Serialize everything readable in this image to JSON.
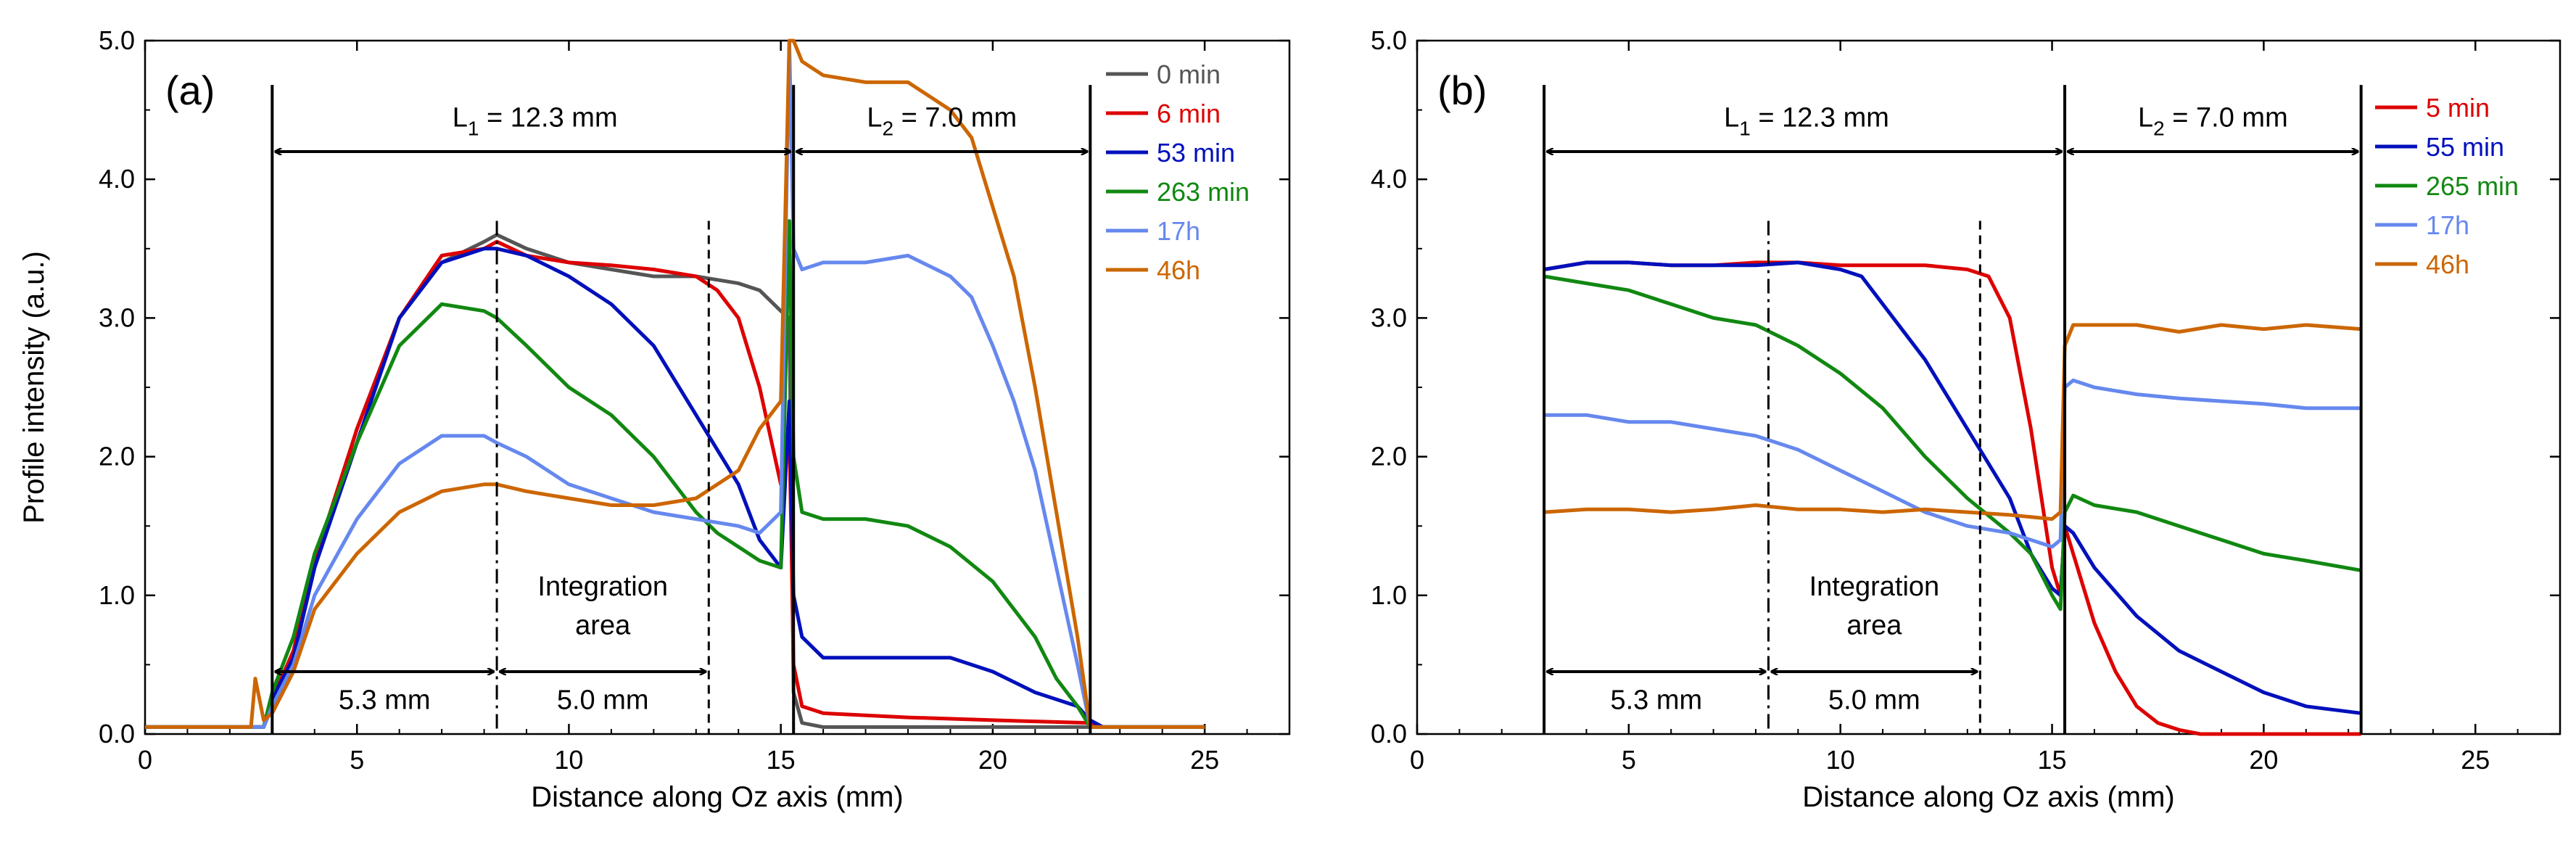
{
  "chart_data": [
    {
      "type": "line",
      "panel_label": "(a)",
      "xlabel": "Distance along Oz axis (mm)",
      "ylabel": "Profile intensity  (a.u.)",
      "xlim": [
        0,
        27
      ],
      "ylim": [
        0,
        5.0
      ],
      "xticks": [
        0,
        5,
        10,
        15,
        20,
        25
      ],
      "yticks": [
        "0.0",
        "1.0",
        "2.0",
        "3.0",
        "4.0",
        "5.0"
      ],
      "legend_position": "top-right",
      "series": [
        {
          "name": "0 min",
          "color": "#555555",
          "x": [
            0,
            2.8,
            3.0,
            3.5,
            4.0,
            5.0,
            6.0,
            7.0,
            8.0,
            8.3,
            9.0,
            10.0,
            11.0,
            12.0,
            13.0,
            14.0,
            14.5,
            15.0,
            15.2,
            15.3,
            15.5,
            16.0,
            18.0,
            20.0,
            22.3,
            22.6,
            25.0
          ],
          "y": [
            0.05,
            0.05,
            0.2,
            0.55,
            1.2,
            2.2,
            3.0,
            3.4,
            3.55,
            3.6,
            3.5,
            3.4,
            3.35,
            3.3,
            3.3,
            3.25,
            3.2,
            3.05,
            3.0,
            0.3,
            0.08,
            0.05,
            0.05,
            0.05,
            0.05,
            0.05,
            0.05
          ]
        },
        {
          "name": "6 min",
          "color": "#dd0000",
          "x": [
            0,
            2.8,
            3.0,
            3.5,
            4.0,
            5.0,
            6.0,
            7.0,
            8.0,
            8.3,
            9.0,
            10.0,
            11.0,
            12.0,
            13.0,
            13.5,
            14.0,
            14.5,
            15.0,
            15.2,
            15.3,
            15.5,
            16.0,
            18.0,
            20.0,
            22.3,
            22.6,
            25.0
          ],
          "y": [
            0.05,
            0.05,
            0.25,
            0.6,
            1.25,
            2.2,
            3.0,
            3.45,
            3.5,
            3.55,
            3.45,
            3.4,
            3.38,
            3.35,
            3.3,
            3.2,
            3.0,
            2.5,
            1.8,
            2.2,
            0.5,
            0.2,
            0.15,
            0.12,
            0.1,
            0.08,
            0.05,
            0.05
          ]
        },
        {
          "name": "53 min",
          "color": "#0010bb",
          "x": [
            0,
            2.8,
            3.0,
            3.5,
            4.0,
            5.0,
            6.0,
            7.0,
            8.0,
            8.3,
            9.0,
            10.0,
            11.0,
            12.0,
            13.0,
            14.0,
            14.5,
            15.0,
            15.2,
            15.3,
            15.5,
            16.0,
            17.0,
            18.0,
            19.0,
            20.0,
            21.0,
            22.0,
            22.3,
            22.6,
            25.0
          ],
          "y": [
            0.05,
            0.05,
            0.25,
            0.55,
            1.2,
            2.1,
            3.0,
            3.4,
            3.5,
            3.5,
            3.45,
            3.3,
            3.1,
            2.8,
            2.3,
            1.8,
            1.4,
            1.2,
            2.4,
            1.0,
            0.7,
            0.55,
            0.55,
            0.55,
            0.55,
            0.45,
            0.3,
            0.2,
            0.1,
            0.05,
            0.05
          ]
        },
        {
          "name": "263 min",
          "color": "#118811",
          "x": [
            0,
            2.8,
            3.0,
            3.5,
            4.0,
            5.0,
            6.0,
            7.0,
            8.0,
            8.3,
            9.0,
            10.0,
            11.0,
            12.0,
            13.0,
            13.5,
            14.0,
            14.5,
            15.0,
            15.2,
            15.3,
            15.5,
            16.0,
            17.0,
            18.0,
            19.0,
            20.0,
            21.0,
            21.5,
            22.0,
            22.3,
            22.6,
            25.0
          ],
          "y": [
            0.05,
            0.05,
            0.3,
            0.7,
            1.3,
            2.1,
            2.8,
            3.1,
            3.05,
            3.0,
            2.8,
            2.5,
            2.3,
            2.0,
            1.6,
            1.45,
            1.35,
            1.25,
            1.2,
            3.7,
            2.0,
            1.6,
            1.55,
            1.55,
            1.5,
            1.35,
            1.1,
            0.7,
            0.4,
            0.2,
            0.05,
            0.05,
            0.05
          ]
        },
        {
          "name": "17h",
          "color": "#6688ee",
          "x": [
            0,
            2.8,
            3.0,
            3.5,
            4.0,
            5.0,
            6.0,
            7.0,
            8.0,
            8.3,
            9.0,
            10.0,
            11.0,
            12.0,
            13.0,
            14.0,
            14.5,
            15.0,
            15.2,
            15.3,
            15.5,
            16.0,
            17.0,
            18.0,
            19.0,
            19.5,
            20.0,
            20.5,
            21.0,
            21.5,
            22.0,
            22.3,
            22.6,
            25.0
          ],
          "y": [
            0.05,
            0.05,
            0.2,
            0.5,
            1.0,
            1.55,
            1.95,
            2.15,
            2.15,
            2.1,
            2.0,
            1.8,
            1.7,
            1.6,
            1.55,
            1.5,
            1.45,
            1.6,
            5.0,
            3.5,
            3.35,
            3.4,
            3.4,
            3.45,
            3.3,
            3.15,
            2.8,
            2.4,
            1.9,
            1.2,
            0.5,
            0.05,
            0.05,
            0.05
          ]
        },
        {
          "name": "46h",
          "color": "#cc6600",
          "x": [
            0,
            2.5,
            2.6,
            2.8,
            3.0,
            3.5,
            4.0,
            5.0,
            6.0,
            7.0,
            8.0,
            8.3,
            9.0,
            10.0,
            11.0,
            12.0,
            13.0,
            14.0,
            14.5,
            15.0,
            15.2,
            15.3,
            15.5,
            16.0,
            17.0,
            18.0,
            19.0,
            19.5,
            20.0,
            20.5,
            21.0,
            21.5,
            22.0,
            22.3,
            22.6,
            25.0
          ],
          "y": [
            0.05,
            0.05,
            0.4,
            0.1,
            0.15,
            0.45,
            0.9,
            1.3,
            1.6,
            1.75,
            1.8,
            1.8,
            1.75,
            1.7,
            1.65,
            1.65,
            1.7,
            1.9,
            2.2,
            2.4,
            5.0,
            5.0,
            4.85,
            4.75,
            4.7,
            4.7,
            4.5,
            4.3,
            3.8,
            3.3,
            2.5,
            1.6,
            0.7,
            0.05,
            0.05,
            0.05
          ]
        }
      ],
      "annotations": [
        {
          "text_main": "L",
          "text_sub": "1",
          "text_rest": " = 12.3 mm"
        },
        {
          "text_main": "L",
          "text_sub": "2",
          "text_rest": " = 7.0 mm"
        },
        {
          "text": "5.3 mm"
        },
        {
          "text": "5.0 mm"
        },
        {
          "text_line1": "Integration",
          "text_line2": "area"
        }
      ]
    },
    {
      "type": "line",
      "panel_label": "(b)",
      "xlabel": "Distance along Oz axis (mm)",
      "ylabel": "",
      "xlim": [
        0,
        27
      ],
      "ylim": [
        0,
        5.0
      ],
      "xticks": [
        0,
        5,
        10,
        15,
        20,
        25
      ],
      "yticks": [
        "0.0",
        "1.0",
        "2.0",
        "3.0",
        "4.0",
        "5.0"
      ],
      "legend_position": "top-right",
      "series": [
        {
          "name": "5 min",
          "color": "#dd0000",
          "x": [
            3.0,
            4.0,
            5.0,
            6.0,
            7.0,
            8.0,
            9.0,
            10.0,
            11.0,
            12.0,
            13.0,
            13.5,
            14.0,
            14.5,
            15.0,
            15.2,
            15.3,
            15.5,
            16.0,
            16.5,
            17.0,
            17.5,
            18.0,
            18.5,
            19.0,
            20.0,
            21.0,
            22.3
          ],
          "y": [
            3.35,
            3.4,
            3.4,
            3.38,
            3.38,
            3.4,
            3.4,
            3.38,
            3.38,
            3.38,
            3.35,
            3.3,
            3.0,
            2.2,
            1.2,
            1.0,
            1.5,
            1.3,
            0.8,
            0.45,
            0.2,
            0.08,
            0.03,
            0.0,
            0.0,
            0.0,
            0.0,
            0.0
          ]
        },
        {
          "name": "55 min",
          "color": "#0010bb",
          "x": [
            3.0,
            4.0,
            5.0,
            6.0,
            7.0,
            8.0,
            9.0,
            10.0,
            10.5,
            11.0,
            12.0,
            13.0,
            14.0,
            14.5,
            15.0,
            15.2,
            15.3,
            15.5,
            16.0,
            17.0,
            18.0,
            19.0,
            20.0,
            21.0,
            22.3
          ],
          "y": [
            3.35,
            3.4,
            3.4,
            3.38,
            3.38,
            3.38,
            3.4,
            3.35,
            3.3,
            3.1,
            2.7,
            2.2,
            1.7,
            1.3,
            1.05,
            1.0,
            1.5,
            1.45,
            1.2,
            0.85,
            0.6,
            0.45,
            0.3,
            0.2,
            0.15
          ]
        },
        {
          "name": "265 min",
          "color": "#118811",
          "x": [
            3.0,
            4.0,
            5.0,
            6.0,
            7.0,
            8.0,
            9.0,
            10.0,
            11.0,
            12.0,
            13.0,
            14.0,
            14.5,
            15.0,
            15.2,
            15.3,
            15.5,
            16.0,
            17.0,
            18.0,
            19.0,
            20.0,
            21.0,
            22.3
          ],
          "y": [
            3.3,
            3.25,
            3.2,
            3.1,
            3.0,
            2.95,
            2.8,
            2.6,
            2.35,
            2.0,
            1.7,
            1.45,
            1.3,
            1.0,
            0.9,
            1.6,
            1.72,
            1.65,
            1.6,
            1.5,
            1.4,
            1.3,
            1.25,
            1.18
          ]
        },
        {
          "name": "17h",
          "color": "#6688ee",
          "x": [
            3.0,
            4.0,
            5.0,
            6.0,
            7.0,
            8.0,
            9.0,
            10.0,
            11.0,
            12.0,
            13.0,
            14.0,
            15.0,
            15.2,
            15.3,
            15.5,
            16.0,
            17.0,
            18.0,
            19.0,
            20.0,
            21.0,
            22.3
          ],
          "y": [
            2.3,
            2.3,
            2.25,
            2.25,
            2.2,
            2.15,
            2.05,
            1.9,
            1.75,
            1.6,
            1.5,
            1.45,
            1.35,
            1.4,
            2.5,
            2.55,
            2.5,
            2.45,
            2.42,
            2.4,
            2.38,
            2.35,
            2.35
          ]
        },
        {
          "name": "46h",
          "color": "#cc6600",
          "x": [
            3.0,
            4.0,
            5.0,
            6.0,
            7.0,
            8.0,
            9.0,
            10.0,
            11.0,
            12.0,
            13.0,
            14.0,
            15.0,
            15.2,
            15.3,
            15.5,
            16.0,
            17.0,
            18.0,
            19.0,
            20.0,
            21.0,
            22.3
          ],
          "y": [
            1.6,
            1.62,
            1.62,
            1.6,
            1.62,
            1.65,
            1.62,
            1.62,
            1.6,
            1.62,
            1.6,
            1.58,
            1.55,
            1.6,
            2.8,
            2.95,
            2.95,
            2.95,
            2.9,
            2.95,
            2.92,
            2.95,
            2.92
          ]
        }
      ],
      "annotations": [
        {
          "text_main": "L",
          "text_sub": "1",
          "text_rest": " = 12.3 mm"
        },
        {
          "text_main": "L",
          "text_sub": "2",
          "text_rest": " = 7.0 mm"
        },
        {
          "text": "5.3 mm"
        },
        {
          "text": "5.0 mm"
        },
        {
          "text_line1": "Integration",
          "text_line2": "area"
        }
      ]
    }
  ]
}
